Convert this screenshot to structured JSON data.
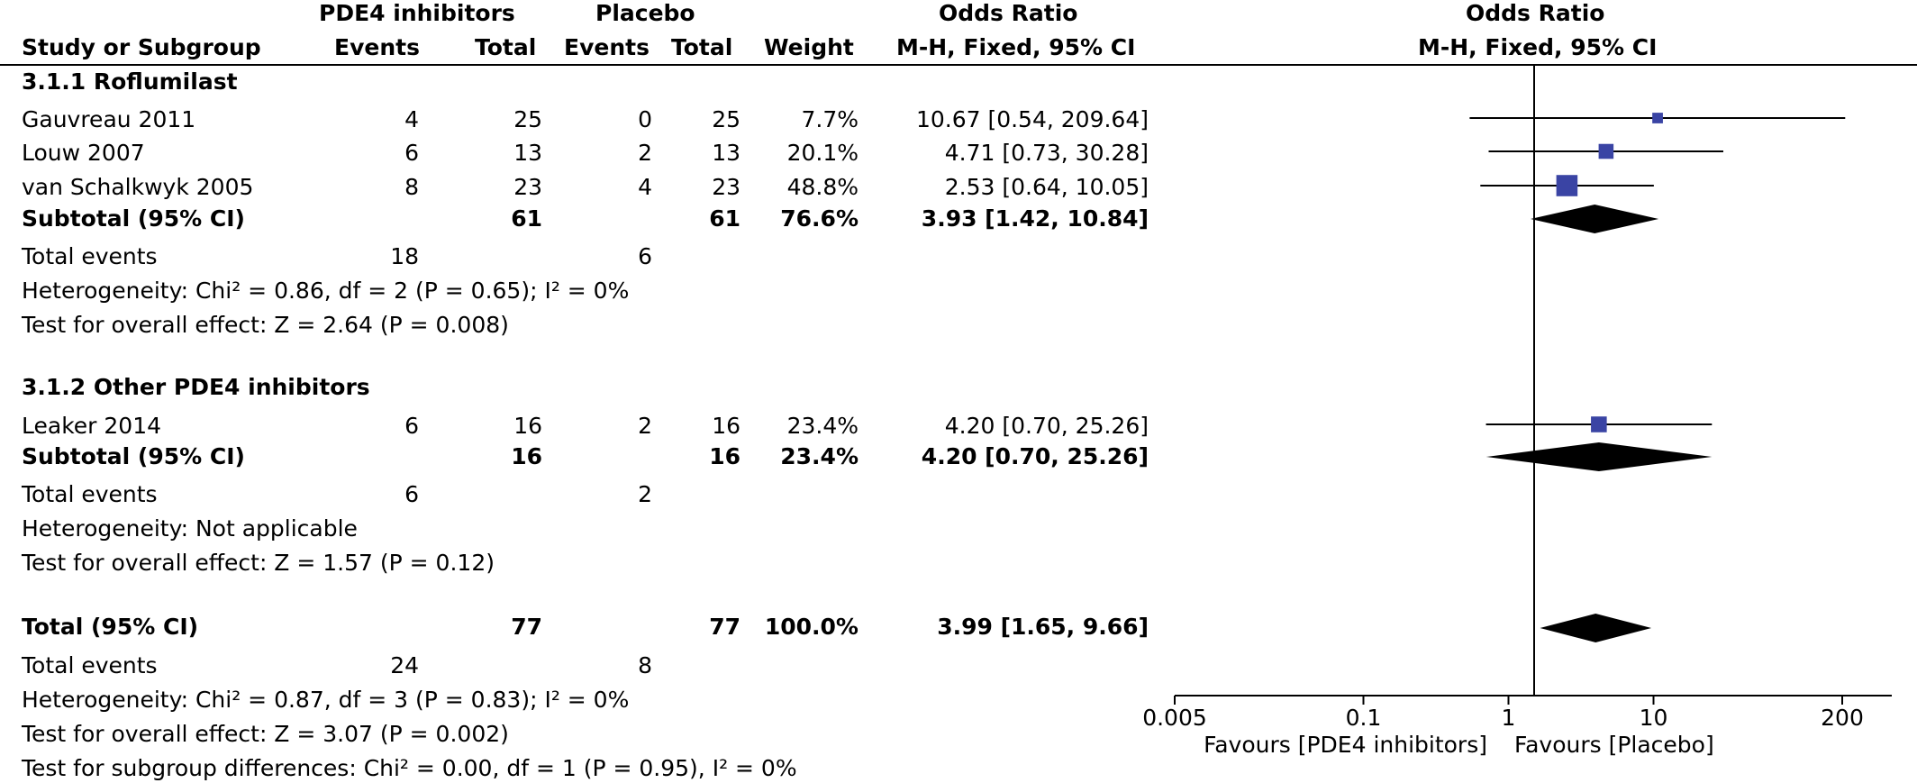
{
  "header": {
    "group1": "PDE4 inhibitors",
    "group2": "Placebo",
    "or_col_title": "Odds Ratio",
    "plot_title": "Odds Ratio",
    "col_study": "Study or Subgroup",
    "col_events1": "Events",
    "col_total1": "Total",
    "col_events2": "Events",
    "col_total2": "Total",
    "col_weight": "Weight",
    "col_method": "M-H, Fixed, 95% CI",
    "plot_method": "M-H, Fixed, 95% CI"
  },
  "subgroup1": {
    "title": "3.1.1 Roflumilast",
    "studies": [
      {
        "name": "Gauvreau 2011",
        "e1": "4",
        "t1": "25",
        "e2": "0",
        "t2": "25",
        "weight": "7.7%",
        "ci": "10.67 [0.54, 209.64]"
      },
      {
        "name": "Louw 2007",
        "e1": "6",
        "t1": "13",
        "e2": "2",
        "t2": "13",
        "weight": "20.1%",
        "ci": "4.71 [0.73, 30.28]"
      },
      {
        "name": "van Schalkwyk 2005",
        "e1": "8",
        "t1": "23",
        "e2": "4",
        "t2": "23",
        "weight": "48.8%",
        "ci": "2.53 [0.64, 10.05]"
      }
    ],
    "subtotal": {
      "label": "Subtotal (95% CI)",
      "t1": "61",
      "t2": "61",
      "weight": "76.6%",
      "ci": "3.93 [1.42, 10.84]"
    },
    "events": {
      "label": "Total events",
      "e1": "18",
      "e2": "6"
    },
    "heterogeneity": "Heterogeneity: Chi² = 0.86, df = 2 (P = 0.65); I² = 0%",
    "overall": "Test for overall effect: Z = 2.64 (P = 0.008)"
  },
  "subgroup2": {
    "title": "3.1.2 Other PDE4 inhibitors",
    "studies": [
      {
        "name": "Leaker 2014",
        "e1": "6",
        "t1": "16",
        "e2": "2",
        "t2": "16",
        "weight": "23.4%",
        "ci": "4.20 [0.70, 25.26]"
      }
    ],
    "subtotal": {
      "label": "Subtotal (95% CI)",
      "t1": "16",
      "t2": "16",
      "weight": "23.4%",
      "ci": "4.20 [0.70, 25.26]"
    },
    "events": {
      "label": "Total events",
      "e1": "6",
      "e2": "2"
    },
    "heterogeneity": "Heterogeneity: Not applicable",
    "overall": "Test for overall effect: Z = 1.57 (P = 0.12)"
  },
  "total": {
    "label": "Total (95% CI)",
    "t1": "77",
    "t2": "77",
    "weight": "100.0%",
    "ci": "3.99 [1.65, 9.66]",
    "events": {
      "label": "Total events",
      "e1": "24",
      "e2": "8"
    },
    "heterogeneity": "Heterogeneity: Chi² = 0.87, df = 3 (P = 0.83); I² = 0%",
    "overall": "Test for overall effect: Z = 3.07 (P = 0.002)",
    "subgroup_diff": "Test for subgroup differences: Chi² = 0.00, df = 1 (P = 0.95), I² = 0%"
  },
  "axis": {
    "ticks": [
      "0.005",
      "0.1",
      "1",
      "10",
      "200"
    ],
    "tick_values": [
      0.005,
      0.1,
      1,
      10,
      200
    ],
    "favours_left": "Favours [PDE4 inhibitors]",
    "favours_right": "Favours [Placebo]"
  },
  "chart_data": {
    "type": "scatter",
    "scale": "log",
    "xlim": [
      0.005,
      200
    ],
    "reference_line": 1,
    "studies": [
      {
        "name": "Gauvreau 2011",
        "or": 10.67,
        "lo": 0.54,
        "hi": 209.64,
        "weight": 7.7
      },
      {
        "name": "Louw 2007",
        "or": 4.71,
        "lo": 0.73,
        "hi": 30.28,
        "weight": 20.1
      },
      {
        "name": "van Schalkwyk 2005",
        "or": 2.53,
        "lo": 0.64,
        "hi": 10.05,
        "weight": 48.8
      },
      {
        "name": "Leaker 2014",
        "or": 4.2,
        "lo": 0.7,
        "hi": 25.26,
        "weight": 23.4
      }
    ],
    "diamonds": [
      {
        "name": "Subtotal 3.1.1",
        "or": 3.93,
        "lo": 1.42,
        "hi": 10.84
      },
      {
        "name": "Subtotal 3.1.2",
        "or": 4.2,
        "lo": 0.7,
        "hi": 25.26
      },
      {
        "name": "Total",
        "or": 3.99,
        "lo": 1.65,
        "hi": 9.66
      }
    ],
    "colors": {
      "square": "#3a44a4",
      "diamond": "#000000",
      "line": "#000000"
    }
  }
}
